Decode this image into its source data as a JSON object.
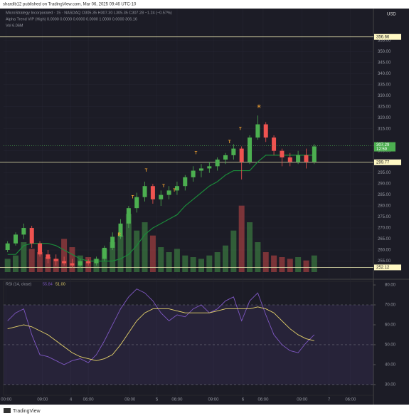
{
  "header": "shardib12 published on TradingView.com, Mar 06, 2025 09:46 UTC-10",
  "footer": "TradingView",
  "chart_data": [
    {
      "type": "candlestick",
      "legend": [
        "MicroStrategy Incorporated · 15 · NASDAQ  O305.35 H307.30 L305.35 C307.28 −1.24 (−0.57%)",
        "Alpha Trend VIP (High)  0.0000  0.0000  0.0000  0.0000  1.0000  0.0000  306.16",
        "Vol  6.06M"
      ],
      "currency": "USD",
      "xlim": [
        0,
        275
      ],
      "xticks": [
        {
          "value": 2,
          "label": "00:00"
        },
        {
          "value": 29,
          "label": "09:00"
        },
        {
          "value": 50,
          "label": "4"
        },
        {
          "value": 63,
          "label": "06:00"
        },
        {
          "value": 94,
          "label": "09:00"
        },
        {
          "value": 114,
          "label": "5"
        },
        {
          "value": 129,
          "label": "06:00"
        },
        {
          "value": 156,
          "label": "09:00"
        },
        {
          "value": 178,
          "label": "6"
        },
        {
          "value": 193,
          "label": "06:00"
        },
        {
          "value": 222,
          "label": "09:00"
        },
        {
          "value": 242,
          "label": "7"
        },
        {
          "value": 258,
          "label": "06:00"
        }
      ],
      "ylim": [
        247.4,
        369.5
      ],
      "yticks": [
        {
          "value": 255,
          "label": "255.00"
        },
        {
          "value": 260,
          "label": "260.00"
        },
        {
          "value": 265,
          "label": "265.00"
        },
        {
          "value": 270,
          "label": "270.00"
        },
        {
          "value": 275,
          "label": "275.00"
        },
        {
          "value": 280,
          "label": "280.00"
        },
        {
          "value": 285,
          "label": "285.00"
        },
        {
          "value": 290,
          "label": "290.00"
        },
        {
          "value": 295,
          "label": "295.00"
        },
        {
          "value": 305,
          "label": "305.00"
        },
        {
          "value": 315,
          "label": "315.00"
        },
        {
          "value": 320,
          "label": "320.00"
        },
        {
          "value": 325,
          "label": "325.00"
        },
        {
          "value": 330,
          "label": "330.00"
        },
        {
          "value": 335,
          "label": "335.00"
        },
        {
          "value": 340,
          "label": "340.00"
        },
        {
          "value": 345,
          "label": "345.00"
        },
        {
          "value": 350,
          "label": "350.00"
        },
        {
          "value": 355,
          "label": "355.00"
        }
      ],
      "up_color": "#4caf50",
      "down_color": "#ef5350",
      "candles": {
        "x": [
          3,
          9,
          15,
          21,
          27,
          33,
          39,
          45,
          51,
          57,
          63,
          69,
          75,
          81,
          87,
          93,
          99,
          105,
          111,
          117,
          123,
          129,
          135,
          141,
          147,
          153,
          159,
          165,
          171,
          177,
          183,
          189,
          195,
          201,
          207,
          213,
          219,
          225,
          231
        ],
        "open": [
          260,
          263,
          267,
          270,
          263,
          258,
          256,
          255,
          254,
          253,
          255,
          254,
          256,
          261,
          266,
          272,
          279,
          284,
          289,
          283,
          285,
          287,
          289,
          293,
          296,
          297,
          298,
          301,
          303,
          306,
          300,
          311,
          317,
          311,
          305,
          302,
          300,
          303,
          300
        ],
        "high": [
          264,
          268,
          272,
          271,
          264,
          260,
          258,
          257,
          256,
          256,
          256,
          257,
          262,
          268,
          274,
          280,
          286,
          291,
          290,
          287,
          289,
          291,
          294,
          298,
          299,
          300,
          302,
          304,
          308,
          307,
          312,
          321,
          318,
          312,
          306,
          304,
          305,
          306,
          308
        ],
        "low": [
          259,
          262,
          265,
          261,
          257,
          254,
          253,
          253,
          252,
          252,
          253,
          253,
          255,
          260,
          265,
          270,
          277,
          282,
          281,
          280,
          283,
          285,
          287,
          291,
          293,
          295,
          296,
          299,
          301,
          292,
          299,
          310,
          309,
          303,
          298,
          298,
          299,
          297,
          299
        ],
        "close": [
          263,
          267,
          270,
          263,
          258,
          256,
          255,
          254,
          253,
          255,
          254,
          256,
          261,
          266,
          272,
          279,
          284,
          289,
          283,
          285,
          287,
          289,
          293,
          296,
          297,
          298,
          301,
          303,
          306,
          300,
          311,
          317,
          311,
          305,
          302,
          300,
          303,
          300,
          307
        ]
      },
      "volume": {
        "ylim": [
          0,
          60
        ],
        "values": [
          8,
          10,
          18,
          14,
          12,
          9,
          8,
          20,
          15,
          10,
          9,
          8,
          14,
          18,
          22,
          35,
          25,
          30,
          22,
          15,
          12,
          14,
          10,
          9,
          8,
          10,
          12,
          16,
          25,
          40,
          30,
          18,
          12,
          10,
          9,
          8,
          9,
          7,
          10
        ]
      },
      "trend": {
        "color": "#1b8a3a",
        "values": [
          258,
          258,
          262,
          263,
          263,
          263,
          262,
          260,
          258,
          256,
          255,
          255,
          255,
          255,
          256,
          258,
          262,
          267,
          270,
          272,
          274,
          276,
          280,
          283,
          286,
          289,
          291,
          294,
          296,
          296,
          296,
          300,
          303,
          303,
          303,
          303,
          303,
          303,
          303
        ]
      },
      "annotations": [
        {
          "text": "R",
          "x": 86,
          "y": 267
        },
        {
          "text": "T",
          "x": 96,
          "y": 284
        },
        {
          "text": "T",
          "x": 106,
          "y": 296
        },
        {
          "text": "T",
          "x": 119,
          "y": 289
        },
        {
          "text": "T",
          "x": 127,
          "y": 287
        },
        {
          "text": "T",
          "x": 143,
          "y": 304
        },
        {
          "text": "T",
          "x": 168,
          "y": 309
        },
        {
          "text": "T",
          "x": 176,
          "y": 315
        },
        {
          "text": "R",
          "x": 190,
          "y": 325
        }
      ],
      "hlines": [
        {
          "value": 356.66,
          "label": "356.66"
        },
        {
          "value": 299.77,
          "label": "299.77"
        },
        {
          "value": 252.12,
          "label": "252.12"
        }
      ],
      "last_price": {
        "value": 307.29,
        "label": "307.29",
        "countdown": "12:59"
      }
    },
    {
      "type": "line",
      "legend": "RSI (14, close)",
      "legend_values": [
        {
          "value": 55.84,
          "label": "55.84"
        },
        {
          "value": 51,
          "label": "51.00"
        }
      ],
      "ylim": [
        24.6,
        81.8
      ],
      "yticks": [
        {
          "value": 30,
          "label": "30.00"
        },
        {
          "value": 40,
          "label": "40.00"
        },
        {
          "value": 50,
          "label": "50.00"
        },
        {
          "value": 60,
          "label": "60.00"
        },
        {
          "value": 70,
          "label": "70.00"
        },
        {
          "value": 80,
          "label": "80.00"
        }
      ],
      "bands": [
        30,
        50,
        70
      ],
      "series": [
        {
          "color": "#7e57c2",
          "values": [
            62,
            66,
            68,
            55,
            45,
            44,
            42,
            40,
            42,
            43,
            41,
            45,
            52,
            60,
            68,
            74,
            78,
            76,
            72,
            66,
            62,
            65,
            64,
            68,
            70,
            66,
            68,
            72,
            74,
            62,
            72,
            76,
            65,
            55,
            50,
            47,
            46,
            51,
            55
          ]
        },
        {
          "color": "#e6d36a",
          "values": [
            58,
            59,
            60,
            59,
            57,
            55,
            52,
            49,
            46,
            44,
            43,
            42,
            43,
            45,
            50,
            56,
            62,
            66,
            68,
            68,
            68,
            67,
            66,
            66,
            66,
            66,
            67,
            68,
            68,
            68,
            68,
            69,
            68,
            66,
            62,
            58,
            55,
            53,
            52
          ]
        }
      ]
    }
  ]
}
